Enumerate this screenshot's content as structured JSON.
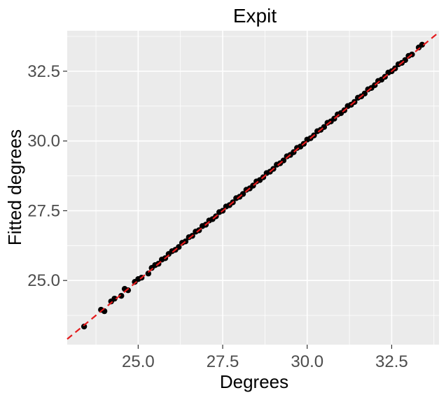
{
  "chart_data": {
    "type": "scatter",
    "title": "Expit",
    "xlabel": "Degrees",
    "ylabel": "Fitted degrees",
    "xlim": [
      22.9,
      33.9
    ],
    "ylim": [
      22.7,
      33.95
    ],
    "x_ticks": [
      "25.0",
      "27.5",
      "30.0",
      "32.5"
    ],
    "y_ticks": [
      "25.0",
      "27.5",
      "30.0",
      "32.5"
    ],
    "x_tick_values": [
      25.0,
      27.5,
      30.0,
      32.5
    ],
    "y_tick_values": [
      25.0,
      27.5,
      30.0,
      32.5
    ],
    "grid": true,
    "background_color": "#ebebeb",
    "point_color": "#000000",
    "reference_line": {
      "slope": 1,
      "intercept": 0,
      "style": "dashed",
      "color": "#e41a1c"
    },
    "series": [
      {
        "points": [
          [
            23.4,
            23.35
          ],
          [
            23.9,
            23.95
          ],
          [
            24.0,
            23.9
          ],
          [
            24.2,
            24.25
          ],
          [
            24.3,
            24.35
          ],
          [
            24.5,
            24.45
          ],
          [
            24.6,
            24.7
          ],
          [
            24.7,
            24.65
          ],
          [
            24.9,
            24.95
          ],
          [
            25.0,
            25.05
          ],
          [
            25.1,
            25.1
          ],
          [
            25.3,
            25.25
          ],
          [
            25.4,
            25.45
          ],
          [
            25.5,
            25.55
          ],
          [
            25.6,
            25.6
          ],
          [
            25.7,
            25.75
          ],
          [
            25.8,
            25.8
          ],
          [
            25.9,
            25.95
          ],
          [
            26.0,
            26.05
          ],
          [
            26.1,
            26.1
          ],
          [
            26.2,
            26.2
          ],
          [
            26.3,
            26.35
          ],
          [
            26.4,
            26.4
          ],
          [
            26.5,
            26.55
          ],
          [
            26.6,
            26.6
          ],
          [
            26.7,
            26.75
          ],
          [
            26.8,
            26.8
          ],
          [
            26.9,
            26.95
          ],
          [
            27.0,
            27.0
          ],
          [
            27.1,
            27.15
          ],
          [
            27.2,
            27.2
          ],
          [
            27.3,
            27.3
          ],
          [
            27.4,
            27.45
          ],
          [
            27.5,
            27.5
          ],
          [
            27.6,
            27.65
          ],
          [
            27.7,
            27.7
          ],
          [
            27.8,
            27.8
          ],
          [
            27.9,
            27.95
          ],
          [
            28.0,
            28.0
          ],
          [
            28.1,
            28.1
          ],
          [
            28.2,
            28.25
          ],
          [
            28.3,
            28.3
          ],
          [
            28.4,
            28.4
          ],
          [
            28.5,
            28.55
          ],
          [
            28.6,
            28.6
          ],
          [
            28.7,
            28.7
          ],
          [
            28.8,
            28.85
          ],
          [
            28.9,
            28.9
          ],
          [
            29.0,
            29.0
          ],
          [
            29.1,
            29.15
          ],
          [
            29.2,
            29.2
          ],
          [
            29.3,
            29.3
          ],
          [
            29.4,
            29.45
          ],
          [
            29.5,
            29.5
          ],
          [
            29.6,
            29.6
          ],
          [
            29.7,
            29.75
          ],
          [
            29.8,
            29.8
          ],
          [
            29.9,
            29.9
          ],
          [
            30.0,
            30.05
          ],
          [
            30.1,
            30.1
          ],
          [
            30.2,
            30.2
          ],
          [
            30.3,
            30.35
          ],
          [
            30.4,
            30.4
          ],
          [
            30.5,
            30.5
          ],
          [
            30.6,
            30.65
          ],
          [
            30.7,
            30.7
          ],
          [
            30.8,
            30.8
          ],
          [
            30.9,
            30.95
          ],
          [
            31.0,
            31.0
          ],
          [
            31.1,
            31.1
          ],
          [
            31.2,
            31.25
          ],
          [
            31.3,
            31.3
          ],
          [
            31.4,
            31.4
          ],
          [
            31.5,
            31.55
          ],
          [
            31.6,
            31.6
          ],
          [
            31.7,
            31.7
          ],
          [
            31.8,
            31.85
          ],
          [
            31.9,
            31.9
          ],
          [
            32.0,
            32.0
          ],
          [
            32.1,
            32.15
          ],
          [
            32.2,
            32.2
          ],
          [
            32.3,
            32.3
          ],
          [
            32.4,
            32.45
          ],
          [
            32.5,
            32.5
          ],
          [
            32.6,
            32.6
          ],
          [
            32.7,
            32.75
          ],
          [
            32.8,
            32.8
          ],
          [
            32.9,
            32.9
          ],
          [
            33.0,
            33.05
          ],
          [
            33.1,
            33.1
          ],
          [
            33.3,
            33.35
          ],
          [
            33.4,
            33.45
          ]
        ]
      }
    ]
  }
}
